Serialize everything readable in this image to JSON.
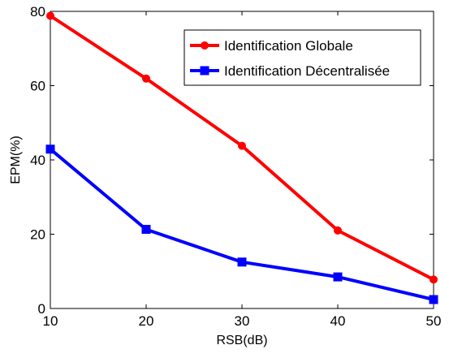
{
  "chart_data": {
    "type": "line",
    "title": "",
    "xlabel": "RSB(dB)",
    "ylabel": "EPM(%)",
    "x": [
      10,
      20,
      30,
      40,
      50
    ],
    "xlim": [
      10,
      50
    ],
    "ylim": [
      0,
      80
    ],
    "xticks": [
      10,
      20,
      30,
      40,
      50
    ],
    "yticks": [
      0,
      20,
      40,
      60,
      80
    ],
    "grid": false,
    "legend_position": "top-right",
    "series": [
      {
        "name": "Identification Globale",
        "values": [
          78.8,
          61.9,
          43.8,
          21.0,
          7.8
        ],
        "color": "#ff0000",
        "marker": "circle"
      },
      {
        "name": "Identification Décentralisée",
        "values": [
          42.9,
          21.3,
          12.5,
          8.5,
          2.4
        ],
        "color": "#0000ff",
        "marker": "square"
      }
    ]
  }
}
